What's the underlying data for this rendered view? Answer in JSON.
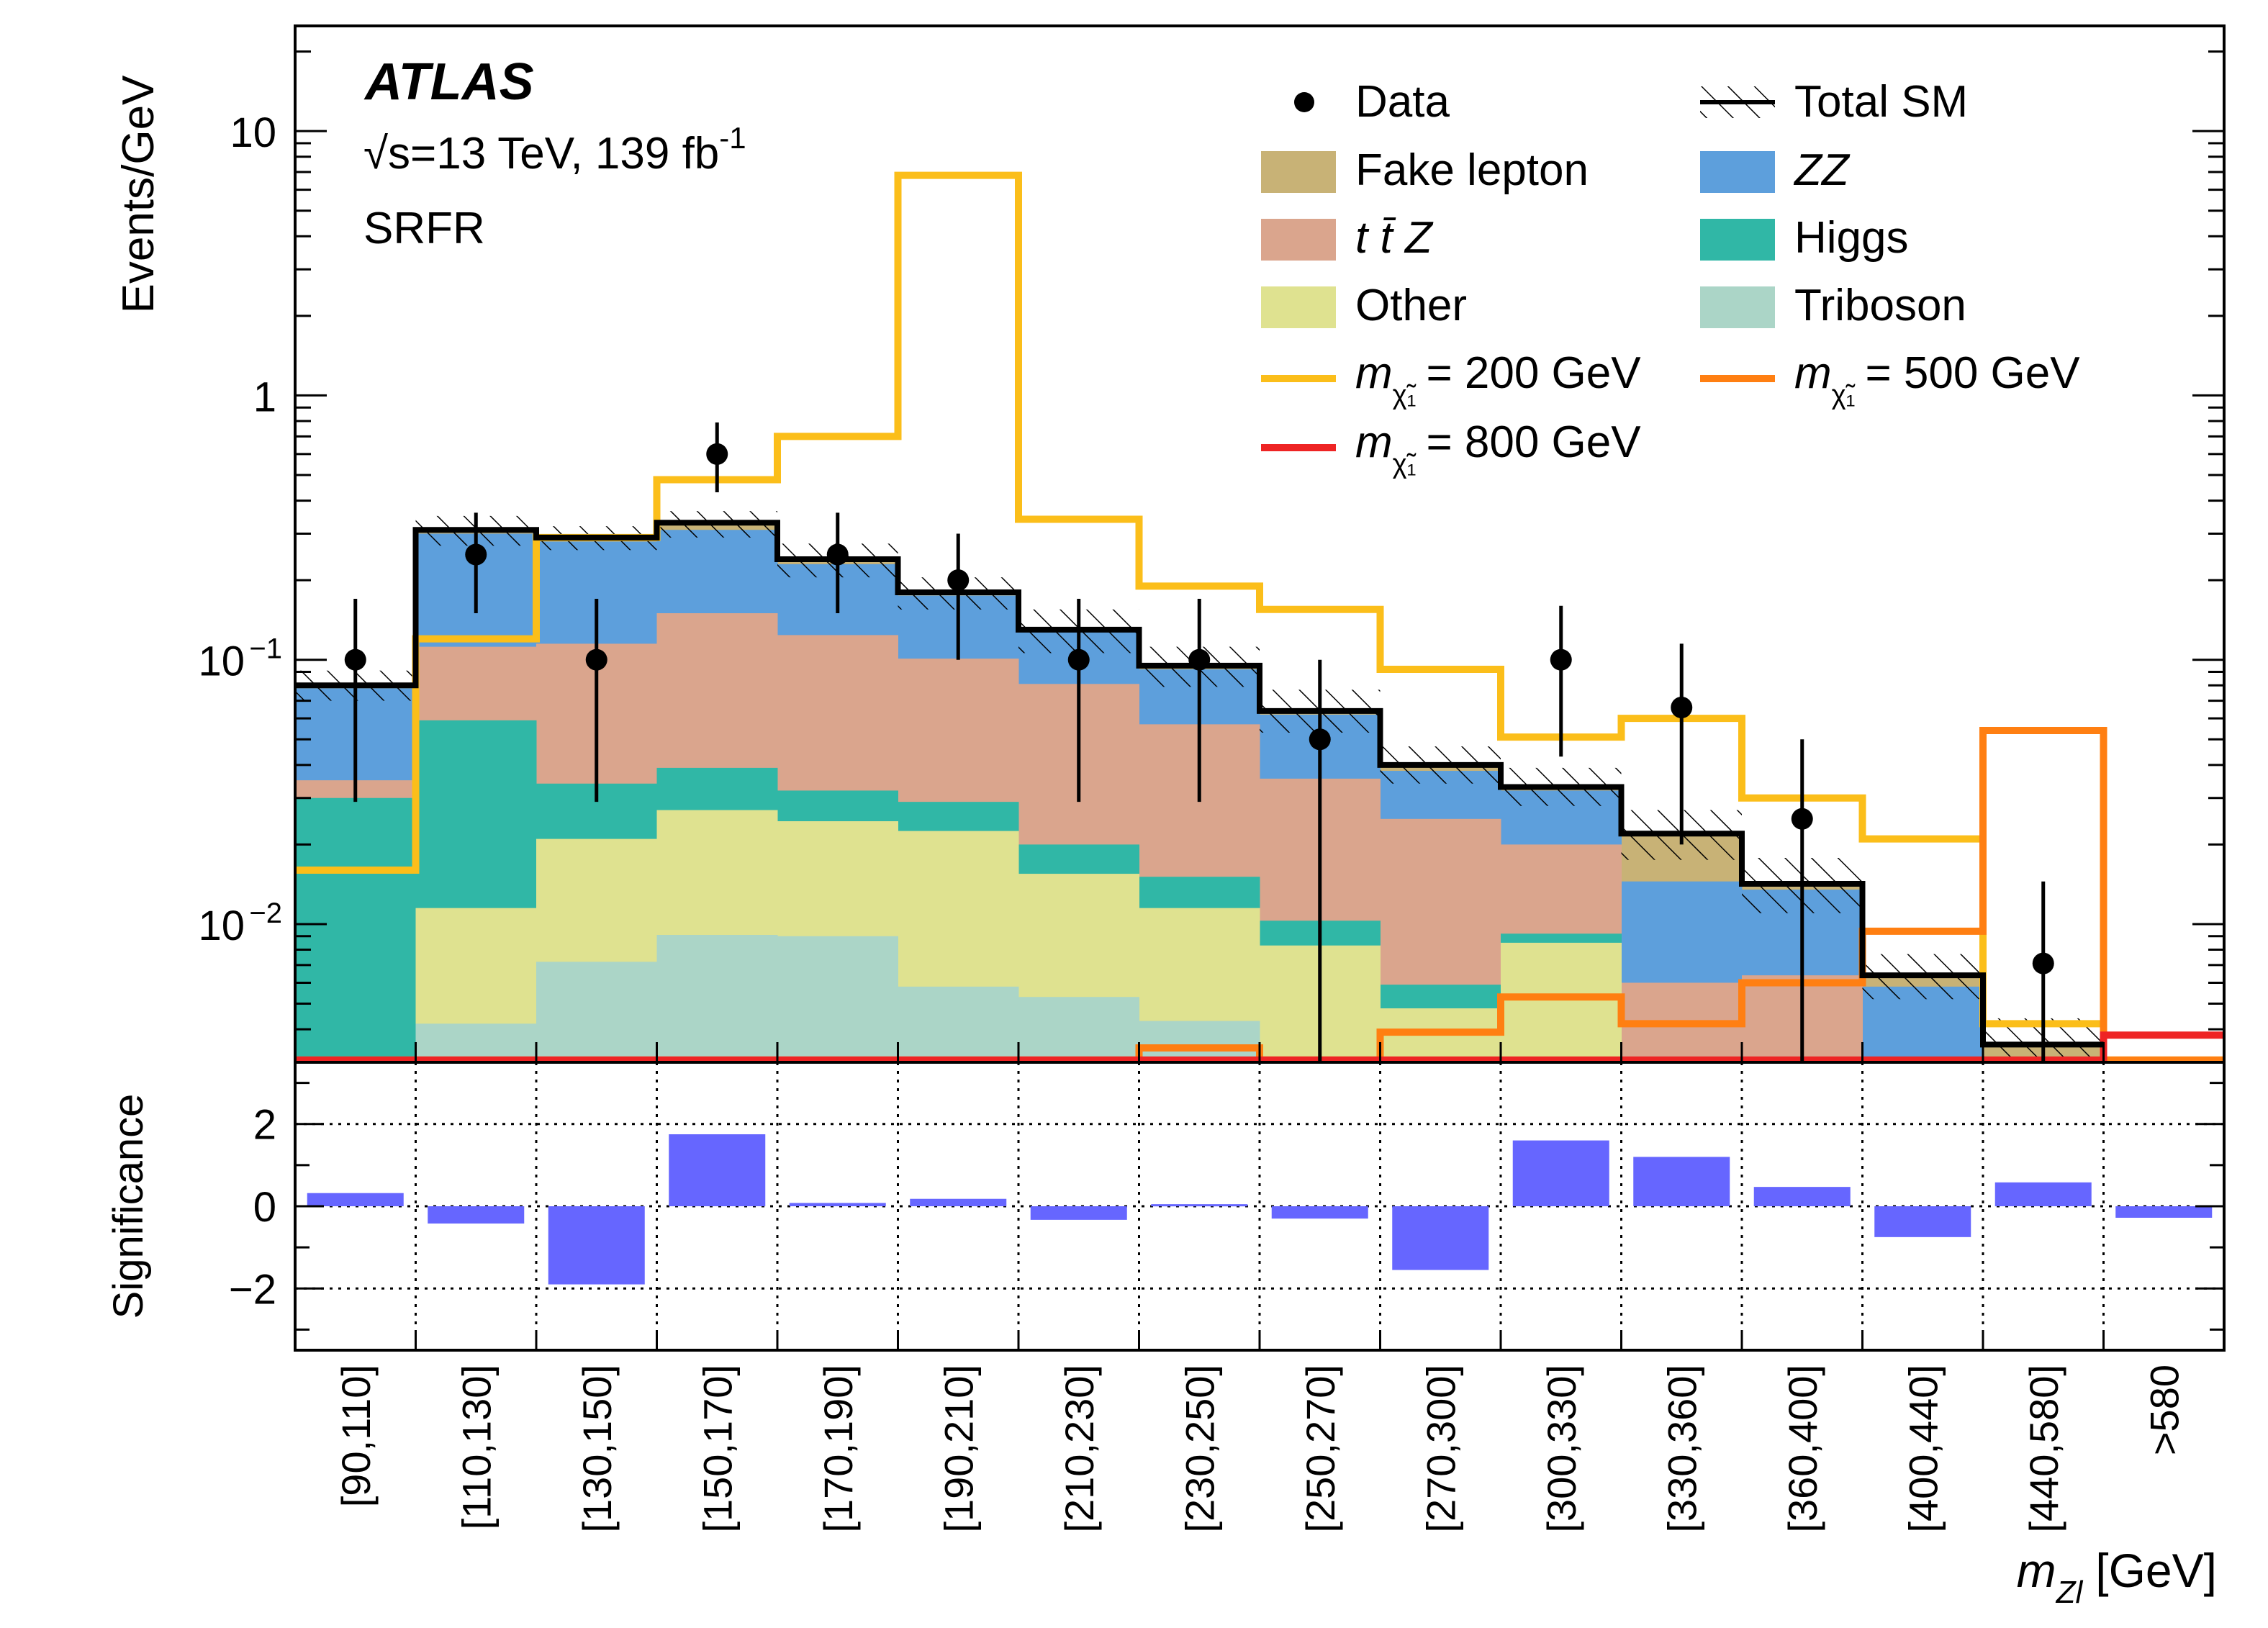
{
  "chart_data": [
    {
      "type": "bar",
      "stacked": true,
      "y_log_scale": true,
      "ylabel": "Events/GeV",
      "ylim": [
        0.003,
        25
      ],
      "y_ticks": [
        {
          "value": 10,
          "label": "10"
        },
        {
          "value": 1,
          "label": "1"
        },
        {
          "value": 0.1,
          "label": "10",
          "exp": "−1"
        },
        {
          "value": 0.01,
          "label": "10",
          "exp": "−2"
        }
      ],
      "atlas_label": "ATLAS",
      "energy_label": "√s=13 TeV, 139 fb",
      "energy_exp": "-1",
      "region_label": "SRFR",
      "categories": [
        "[90,110]",
        "[110,130]",
        "[130,150]",
        "[150,170]",
        "[170,190]",
        "[190,210]",
        "[210,230]",
        "[230,250]",
        "[250,270]",
        "[270,300]",
        "[300,330]",
        "[330,360]",
        "[360,400]",
        "[400,440]",
        "[440,580]",
        ">580"
      ],
      "series": [
        {
          "name": "Triboson",
          "color": "#abd5c7",
          "values": [
            0.003,
            0.0042,
            0.0072,
            0.0091,
            0.009,
            0.0058,
            0.0053,
            0.0043,
            0.0031,
            0.003,
            0.003,
            0.003,
            0.003,
            0.003,
            0.003,
            0.003
          ]
        },
        {
          "name": "Other",
          "color": "#dfe290",
          "values": [
            0.003,
            0.0115,
            0.021,
            0.027,
            0.0245,
            0.0225,
            0.0155,
            0.0115,
            0.0083,
            0.0048,
            0.0085,
            0.003,
            0.003,
            0.003,
            0.003,
            0.003
          ]
        },
        {
          "name": "Higgs",
          "color": "#30b7a6",
          "values": [
            0.03,
            0.059,
            0.034,
            0.039,
            0.032,
            0.029,
            0.02,
            0.0151,
            0.0103,
            0.0059,
            0.0092,
            0.003,
            0.003,
            0.003,
            0.003,
            0.003
          ]
        },
        {
          "name": "t t̄ Z",
          "color": "#daa58d",
          "values": [
            0.035,
            0.112,
            0.115,
            0.15,
            0.124,
            0.101,
            0.081,
            0.057,
            0.0355,
            0.025,
            0.02,
            0.006,
            0.0064,
            0.003,
            0.003,
            0.003
          ]
        },
        {
          "name": "ZZ",
          "color": "#5d9fdc",
          "values": [
            0.078,
            0.3,
            0.28,
            0.31,
            0.23,
            0.175,
            0.127,
            0.092,
            0.062,
            0.038,
            0.032,
            0.0145,
            0.0135,
            0.0058,
            0.003,
            0.003
          ]
        },
        {
          "name": "Fake lepton",
          "color": "#c8b276",
          "values": [
            0.08,
            0.31,
            0.29,
            0.33,
            0.24,
            0.18,
            0.13,
            0.095,
            0.064,
            0.04,
            0.033,
            0.022,
            0.0142,
            0.0064,
            0.0035,
            0.003
          ]
        }
      ],
      "total_sm": {
        "name": "Total SM",
        "values": [
          0.08,
          0.31,
          0.29,
          0.33,
          0.24,
          0.18,
          0.13,
          0.095,
          0.064,
          0.04,
          0.033,
          0.022,
          0.0142,
          0.0064,
          0.0035,
          0.003
        ],
        "unc_low": [
          0.07,
          0.27,
          0.26,
          0.29,
          0.205,
          0.155,
          0.106,
          0.079,
          0.053,
          0.034,
          0.028,
          0.0175,
          0.011,
          0.0052,
          0.003,
          0.003
        ],
        "unc_high": [
          0.091,
          0.35,
          0.32,
          0.365,
          0.275,
          0.205,
          0.155,
          0.112,
          0.077,
          0.047,
          0.039,
          0.027,
          0.0178,
          0.0077,
          0.0044,
          0.003
        ]
      },
      "data": {
        "name": "Data",
        "values": [
          0.1,
          0.25,
          0.1,
          0.6,
          0.25,
          0.2,
          0.1,
          0.1,
          0.05,
          null,
          0.1,
          0.066,
          0.025,
          null,
          0.0071,
          null
        ],
        "err_low": [
          0.029,
          0.15,
          0.029,
          0.43,
          0.15,
          0.1,
          0.029,
          0.029,
          0.003,
          null,
          0.043,
          0.02,
          0.003,
          null,
          0.003,
          null
        ],
        "err_high": [
          0.17,
          0.36,
          0.17,
          0.79,
          0.36,
          0.3,
          0.17,
          0.17,
          0.1,
          null,
          0.16,
          0.115,
          0.05,
          null,
          0.0145,
          null
        ]
      },
      "signals": [
        {
          "name_pre": "m",
          "name_sub": "χ̃₁",
          "name_post": "= 200 GeV",
          "color": "#fbbe1a",
          "values": [
            0.016,
            0.12,
            0.29,
            0.48,
            0.7,
            6.8,
            0.34,
            0.19,
            0.155,
            0.092,
            0.051,
            0.06,
            0.03,
            0.021,
            0.0042,
            0.003
          ]
        },
        {
          "name_pre": "m",
          "name_sub": "χ̃₁",
          "name_post": "= 500 GeV",
          "color": "#ff7f12",
          "values": [
            0.003,
            0.003,
            0.003,
            0.003,
            0.003,
            0.003,
            0.003,
            0.0034,
            0.003,
            0.0039,
            0.0053,
            0.0042,
            0.006,
            0.0094,
            0.054,
            0.003
          ]
        },
        {
          "name_pre": "m",
          "name_sub": "χ̃₁",
          "name_post": "= 800 GeV",
          "color": "#ee2424",
          "values": [
            0.003,
            0.003,
            0.003,
            0.003,
            0.003,
            0.003,
            0.003,
            0.003,
            0.003,
            0.003,
            0.003,
            0.003,
            0.003,
            0.003,
            0.003,
            0.0038
          ]
        }
      ],
      "legend_position": "top-right"
    },
    {
      "type": "bar",
      "ylabel": "Significance",
      "ylim": [
        -3.5,
        3.5
      ],
      "y_ticks": [
        "2",
        "0",
        "−2"
      ],
      "grid": true,
      "color": "#6666ff",
      "categories": [
        "[90,110]",
        "[110,130]",
        "[130,150]",
        "[150,170]",
        "[170,190]",
        "[190,210]",
        "[210,230]",
        "[230,250]",
        "[250,270]",
        "[270,300]",
        "[300,330]",
        "[330,360]",
        "[360,400]",
        "[400,440]",
        "[440,580]",
        ">580"
      ],
      "values": [
        0.32,
        -0.42,
        -1.9,
        1.75,
        0.08,
        0.18,
        -0.33,
        0.05,
        -0.3,
        -1.55,
        1.6,
        1.2,
        0.47,
        -0.75,
        0.58,
        -0.28
      ],
      "xlabel": "m",
      "xlabel_sub": "Zl",
      "xlabel_unit": "[GeV]"
    }
  ]
}
